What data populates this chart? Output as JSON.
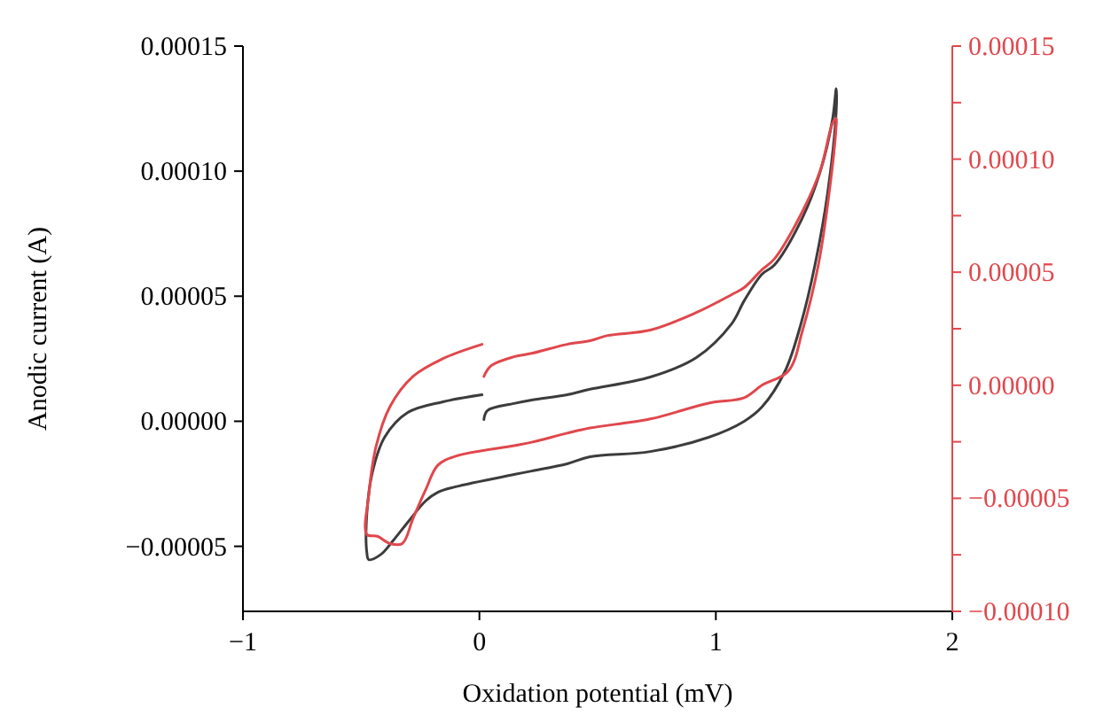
{
  "chart_data": {
    "type": "line",
    "xlabel": "Oxidation potential (mV)",
    "ylabel": "Anodic current (A)",
    "xlim": [
      -1,
      2
    ],
    "xticks": [
      -1,
      0,
      1,
      2
    ],
    "ylim": [
      -7.6e-05,
      0.00015
    ],
    "yticks": [
      {
        "value": 0.00015,
        "label": "0.00015"
      },
      {
        "value": 0.0001,
        "label": "0.00010"
      },
      {
        "value": 5e-05,
        "label": "0.00005"
      },
      {
        "value": 0,
        "label": "0.00000"
      },
      {
        "value": -5e-05,
        "label": "−0.00005"
      }
    ],
    "y2lim": [
      -0.0001,
      0.00015
    ],
    "y2ticks": [
      {
        "value": 0.00015,
        "label": "0.00015"
      },
      {
        "value": 0.000125,
        "label": null
      },
      {
        "value": 0.0001,
        "label": "0.00010"
      },
      {
        "value": 7.5e-05,
        "label": null
      },
      {
        "value": 5e-05,
        "label": "0.00005"
      },
      {
        "value": 2.5e-05,
        "label": null
      },
      {
        "value": 0,
        "label": "0.00000"
      },
      {
        "value": -2.5e-05,
        "label": null
      },
      {
        "value": -5e-05,
        "label": "−0.00005"
      },
      {
        "value": -7.5e-05,
        "label": null
      },
      {
        "value": -0.0001,
        "label": "−0.00010"
      }
    ],
    "grid": false,
    "line_style": "solid",
    "series": [
      {
        "color": "#3c3c3c",
        "x": [
          0.019,
          0.034,
          0.146,
          0.221,
          0.371,
          0.468,
          0.723,
          0.918,
          1.067,
          1.12,
          1.195,
          1.247,
          1.367,
          1.442,
          1.494,
          1.509,
          1.509,
          1.472,
          1.419,
          1.36,
          1.292,
          1.195,
          1.12,
          0.97,
          0.723,
          0.468,
          0.371,
          0.221,
          0.146,
          -0.101,
          -0.176,
          -0.228,
          -0.303,
          -0.363,
          -0.416,
          -0.468,
          -0.476,
          -0.476,
          -0.453,
          -0.401,
          -0.303,
          -0.154,
          0.011
        ],
        "values": [
          7e-07,
          4.3e-06,
          7.1e-06,
          8.5e-06,
          1.06e-05,
          1.28e-05,
          1.77e-05,
          2.55e-05,
          3.9e-05,
          4.82e-05,
          5.88e-05,
          6.24e-05,
          8.15e-05,
          0.0001,
          0.000121,
          0.000133,
          0.000124,
          9.08e-05,
          6.24e-05,
          3.9e-05,
          1.99e-05,
          5.7e-06,
          0,
          -6.4e-06,
          -1.21e-05,
          -1.42e-05,
          -1.7e-05,
          -1.99e-05,
          -2.13e-05,
          -2.62e-05,
          -2.84e-05,
          -3.19e-05,
          -4.04e-05,
          -4.75e-05,
          -5.32e-05,
          -5.53e-05,
          -5.25e-05,
          -3.69e-05,
          -2.06e-05,
          -6.4e-06,
          3.5e-06,
          7.8e-06,
          1.06e-05
        ]
      },
      {
        "color": "#e0474c",
        "axis": "y2",
        "x": [
          0.019,
          0.049,
          0.146,
          0.221,
          0.371,
          0.468,
          0.543,
          0.723,
          0.918,
          1.067,
          1.12,
          1.195,
          1.247,
          1.367,
          1.442,
          1.494,
          1.509,
          1.509,
          1.479,
          1.434,
          1.367,
          1.307,
          1.195,
          1.12,
          0.97,
          0.723,
          0.468,
          0.371,
          0.221,
          0.146,
          -0.101,
          -0.176,
          -0.228,
          -0.281,
          -0.326,
          -0.378,
          -0.431,
          -0.476,
          -0.468,
          -0.438,
          -0.378,
          -0.281,
          -0.154,
          0.011
        ],
        "values": [
          3.9e-06,
          8.6e-06,
          1.26e-05,
          1.41e-05,
          1.81e-05,
          1.97e-05,
          2.2e-05,
          2.44e-05,
          3.22e-05,
          4.01e-05,
          4.32e-05,
          5.11e-05,
          5.58e-05,
          7.7e-05,
          9.51e-05,
          0.000116,
          0.000118,
          0.000115,
          8.49e-05,
          5.35e-05,
          2.44e-05,
          6.3e-06,
          0,
          -5.5e-06,
          -7.9e-06,
          -1.49e-05,
          -1.89e-05,
          -2.12e-05,
          -2.52e-05,
          -2.67e-05,
          -3.14e-05,
          -3.54e-05,
          -4.64e-05,
          -5.9e-05,
          -7e-05,
          -7e-05,
          -6.68e-05,
          -6.6e-05,
          -4.87e-05,
          -2.75e-05,
          -9.4e-06,
          3.9e-06,
          1.18e-05,
          1.81e-05
        ]
      }
    ]
  }
}
